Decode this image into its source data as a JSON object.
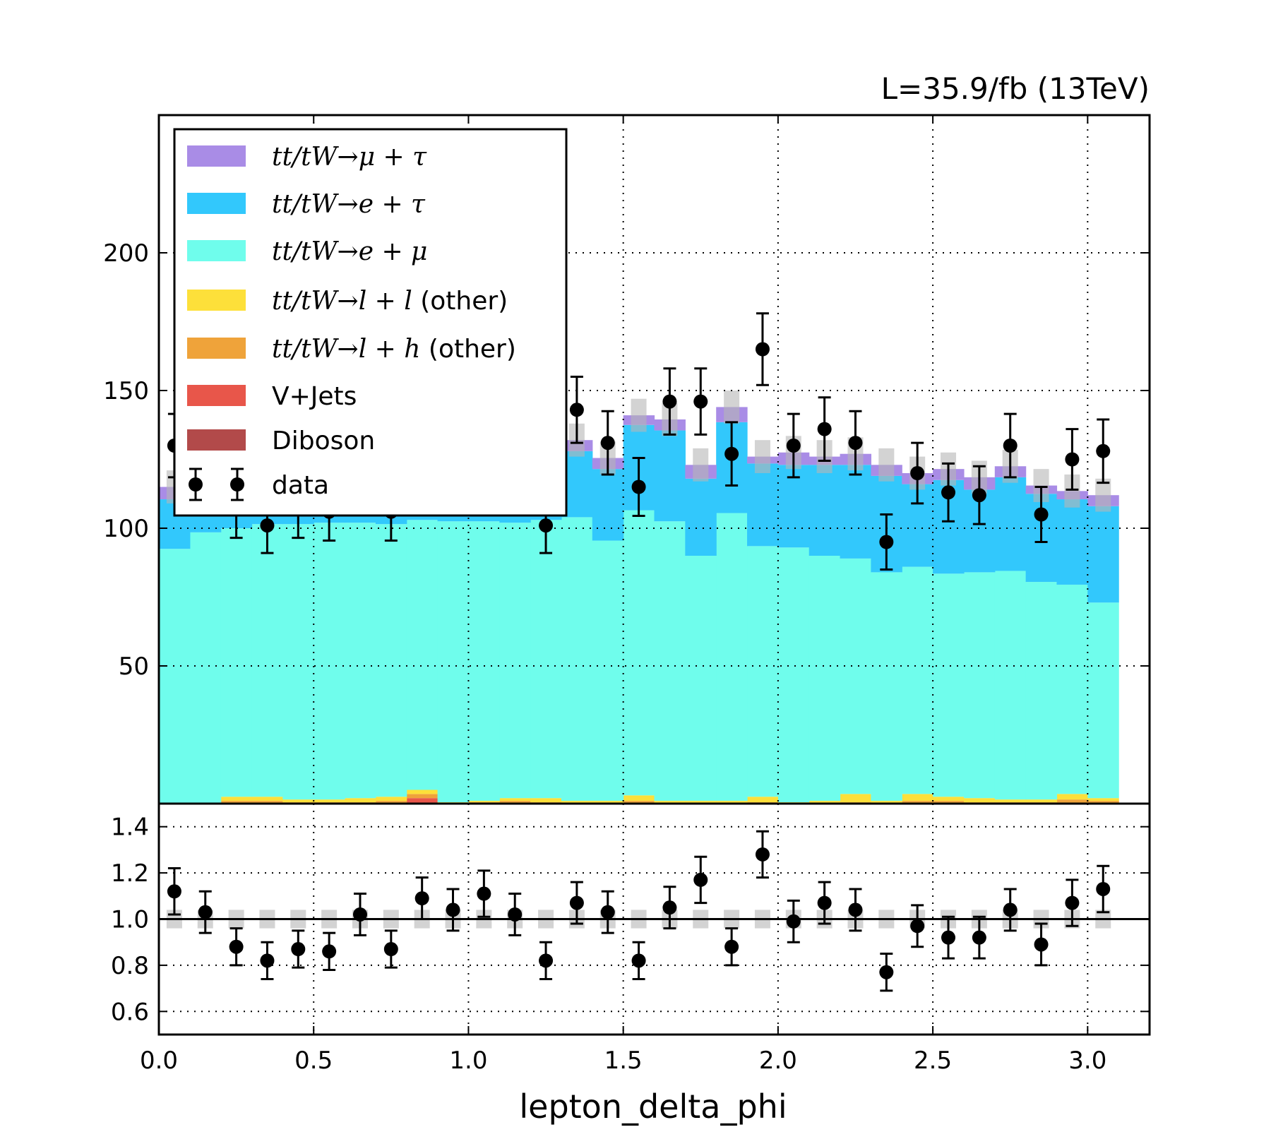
{
  "lumi_label": "L=35.9/fb (13TeV)",
  "chart_data": [
    {
      "type": "bar",
      "subtype": "stacked-histogram-with-data-points",
      "xlabel": "lepton_delta_phi",
      "ylabel": "",
      "xlim": [
        0.0,
        3.2
      ],
      "ylim": [
        0,
        250
      ],
      "yticks": [
        50,
        100,
        150,
        200
      ],
      "xticks": [
        0.0,
        0.5,
        1.0,
        1.5,
        2.0,
        2.5,
        3.0
      ],
      "xtick_labels": [
        "0.0",
        "0.5",
        "1.0",
        "1.5",
        "2.0",
        "2.5",
        "3.0"
      ],
      "grid": true,
      "legend_position": "upper-left",
      "bin_edges": [
        0.0,
        0.1,
        0.2,
        0.3,
        0.4,
        0.5,
        0.6,
        0.7,
        0.8,
        0.9,
        1.0,
        1.1,
        1.2,
        1.3,
        1.4,
        1.5,
        1.6,
        1.7,
        1.8,
        1.9,
        2.0,
        2.1,
        2.2,
        2.3,
        2.4,
        2.5,
        2.6,
        2.7,
        2.8,
        2.9,
        3.0,
        3.1
      ],
      "series": [
        {
          "name": "Diboson",
          "label_math": false,
          "color": "#b24a4a",
          "values": [
            0,
            0,
            0,
            0,
            0,
            0,
            0,
            0,
            0,
            0,
            0,
            0,
            0,
            0,
            0,
            0,
            0,
            0,
            0,
            0,
            0,
            0,
            0,
            0,
            0,
            0,
            0,
            0,
            0,
            0,
            0
          ]
        },
        {
          "name": "V+Jets",
          "label_math": false,
          "color": "#e8564a",
          "values": [
            0,
            0,
            0,
            0,
            0,
            0,
            0,
            0,
            2,
            0,
            0,
            0,
            0,
            0,
            0,
            0,
            0,
            0,
            0,
            0,
            0,
            0,
            0,
            0,
            0,
            0,
            0,
            0,
            0,
            0,
            0
          ]
        },
        {
          "name": "tt/tW→l+h (other)",
          "label_math": true,
          "math": "tt/tW→l+h",
          "suffix": " (other)",
          "color": "#efa33a",
          "values": [
            0,
            0,
            1,
            1,
            0.5,
            0.5,
            0.5,
            1,
            1.5,
            0,
            0.5,
            1,
            0.5,
            0,
            0,
            1,
            0,
            0,
            0,
            0.5,
            0,
            0,
            0.5,
            0,
            1,
            1,
            0.5,
            0.5,
            0.5,
            1.5,
            1
          ]
        },
        {
          "name": "tt/tW→l+l (other)",
          "label_math": true,
          "math": "tt/tW→l+l",
          "suffix": " (other)",
          "color": "#fde03a",
          "values": [
            0,
            0,
            1.5,
            1.5,
            1,
            1,
            1.5,
            1.5,
            1.5,
            0.5,
            0.5,
            1,
            1.5,
            1,
            1,
            2,
            1,
            1,
            1,
            2,
            0.5,
            1,
            3,
            1,
            2.5,
            1.5,
            1.5,
            1,
            1,
            2,
            1
          ]
        },
        {
          "name": "tt/tW→e+μ",
          "label_math": true,
          "math": "tt/tW→e+μ",
          "suffix": "",
          "color": "#6ffdec",
          "values": [
            92.5,
            98.5,
            97.5,
            99,
            100,
            100.5,
            100,
            99,
            98,
            102,
            101.5,
            100,
            101,
            103,
            94.5,
            103.5,
            101.5,
            89,
            104.5,
            91,
            92.5,
            89,
            85.5,
            83,
            82.5,
            81,
            82,
            83,
            79,
            76,
            71
          ]
        },
        {
          "name": "tt/tW→e+τ",
          "label_math": true,
          "math": "tt/tW→e+τ",
          "suffix": "",
          "color": "#32c8fc",
          "values": [
            18,
            9.5,
            15,
            16,
            17,
            16,
            17,
            17,
            16,
            15,
            17,
            15,
            17,
            24,
            26,
            31,
            33,
            28,
            33,
            30,
            30,
            33,
            34,
            35,
            30,
            34,
            30,
            34,
            32,
            31,
            35
          ]
        },
        {
          "name": "tt/tW→μ+τ",
          "label_math": true,
          "math": "tt/tW→μ+τ",
          "suffix": "",
          "color": "#a98ce6",
          "values": [
            4.5,
            3.5,
            4.5,
            4,
            4,
            4,
            4,
            4,
            4,
            4,
            4,
            4,
            4,
            4,
            4,
            3.5,
            4,
            5,
            5.5,
            2.5,
            4.5,
            3,
            4,
            4,
            4,
            4,
            4.5,
            4,
            3,
            3,
            4
          ]
        }
      ],
      "data": {
        "name": "data",
        "values": [
          130,
          126,
          107,
          101,
          107,
          106,
          127,
          106,
          134,
          128,
          137,
          125,
          101,
          143,
          131,
          115,
          146,
          146,
          127,
          165,
          130,
          136,
          131,
          95,
          120,
          113,
          112,
          130,
          105,
          125,
          128
        ],
        "errors": [
          11.5,
          11.5,
          10.5,
          10,
          10.5,
          10.5,
          11.5,
          10.5,
          11.5,
          11.5,
          12,
          11,
          10,
          12,
          11.5,
          10.5,
          12,
          12,
          11.5,
          13,
          11.5,
          11.5,
          11.5,
          10,
          11,
          10.5,
          10.5,
          11.5,
          10,
          11,
          11.5
        ]
      },
      "mc_uncertainty": 6
    },
    {
      "type": "scatter",
      "subtype": "ratio-panel",
      "xlabel": "lepton_delta_phi",
      "ylabel": "",
      "xlim": [
        0.0,
        3.2
      ],
      "ylim": [
        0.5,
        1.5
      ],
      "yticks": [
        0.6,
        0.8,
        1.0,
        1.2,
        1.4
      ],
      "ytick_labels": [
        "0.6",
        "0.8",
        "1.0",
        "1.2",
        "1.4"
      ],
      "reference_line": 1.0,
      "grid": true,
      "ratio": [
        1.12,
        1.03,
        0.88,
        0.82,
        0.87,
        0.86,
        1.02,
        0.87,
        1.09,
        1.04,
        1.11,
        1.02,
        0.82,
        1.07,
        1.03,
        0.82,
        1.05,
        1.17,
        0.88,
        1.28,
        0.99,
        1.07,
        1.04,
        0.77,
        0.97,
        0.92,
        0.92,
        1.04,
        0.89,
        1.07,
        1.13
      ],
      "ratio_errors": [
        0.1,
        0.09,
        0.08,
        0.08,
        0.08,
        0.08,
        0.09,
        0.08,
        0.09,
        0.09,
        0.1,
        0.09,
        0.08,
        0.09,
        0.09,
        0.08,
        0.09,
        0.1,
        0.08,
        0.1,
        0.09,
        0.09,
        0.09,
        0.08,
        0.09,
        0.09,
        0.09,
        0.09,
        0.09,
        0.1,
        0.1
      ],
      "band_halfwidth": 0.04
    }
  ]
}
